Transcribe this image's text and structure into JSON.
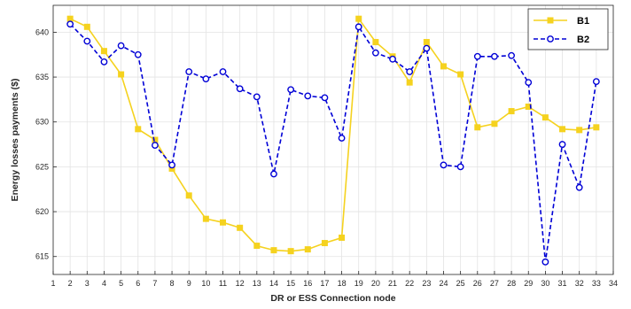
{
  "chart_data": {
    "type": "line",
    "xlabel": "DR or ESS Connection node",
    "ylabel": "Energy losses payments ($)",
    "xlim": [
      1,
      34
    ],
    "ylim": [
      613,
      643
    ],
    "xticks": [
      1,
      2,
      3,
      4,
      5,
      6,
      7,
      8,
      9,
      10,
      11,
      12,
      13,
      14,
      15,
      16,
      17,
      18,
      19,
      20,
      21,
      22,
      23,
      24,
      25,
      26,
      27,
      28,
      29,
      30,
      31,
      32,
      33,
      34
    ],
    "yticks": [
      615,
      620,
      625,
      630,
      635,
      640
    ],
    "grid": true,
    "legend_position": "top-right",
    "x": [
      2,
      3,
      4,
      5,
      6,
      7,
      8,
      9,
      10,
      11,
      12,
      13,
      14,
      15,
      16,
      17,
      18,
      19,
      20,
      21,
      22,
      23,
      24,
      25,
      26,
      27,
      28,
      29,
      30,
      31,
      32,
      33
    ],
    "series": [
      {
        "name": "B1",
        "color": "#f5d21f",
        "style": "solid",
        "marker": "square",
        "values": [
          641.5,
          640.6,
          637.9,
          635.3,
          629.2,
          628.0,
          624.8,
          621.8,
          619.2,
          618.8,
          618.2,
          616.2,
          615.7,
          615.6,
          615.8,
          616.5,
          617.1,
          641.5,
          638.9,
          637.3,
          634.4,
          638.9,
          636.2,
          635.3,
          629.4,
          629.8,
          631.2,
          631.7,
          630.5,
          629.2,
          629.1,
          629.4
        ]
      },
      {
        "name": "B2",
        "color": "#0000d6",
        "style": "dashed",
        "marker": "circle",
        "values": [
          640.9,
          639.0,
          636.7,
          638.5,
          637.5,
          627.4,
          625.2,
          635.6,
          634.8,
          635.6,
          633.7,
          632.8,
          624.2,
          633.6,
          632.9,
          632.7,
          628.2,
          640.6,
          637.7,
          637.0,
          635.6,
          638.2,
          625.2,
          625.0,
          637.3,
          637.3,
          637.4,
          634.4,
          614.4,
          627.5,
          622.7,
          634.5
        ]
      }
    ]
  }
}
